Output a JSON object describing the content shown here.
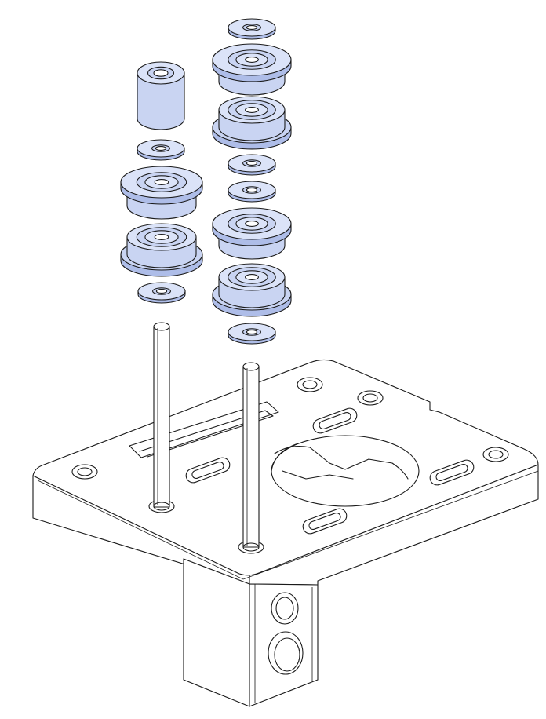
{
  "colors": {
    "part_fill": "#c9d4f2",
    "part_fill_light": "#dbe3f8",
    "part_shade": "#aebde8",
    "outline": "#1a1a1a",
    "background": "#ffffff"
  }
}
